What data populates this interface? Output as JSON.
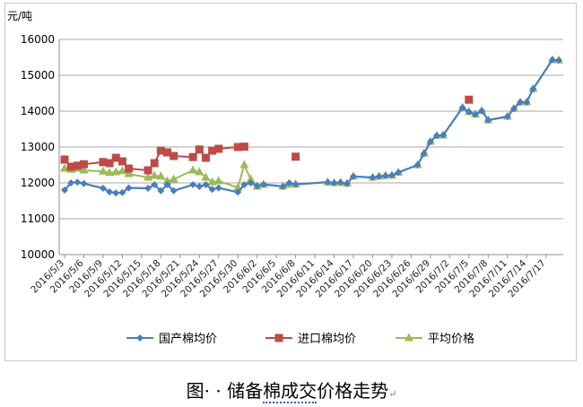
{
  "caption": {
    "prefix": "图· · ",
    "text_part1": "储备",
    "text_underlined": "棉成交",
    "text_part2": "价格走势",
    "return_mark": "↵"
  },
  "chart_data": {
    "type": "line",
    "ylabel": "元/吨",
    "ylim": [
      10000,
      16000
    ],
    "yticks": [
      10000,
      11000,
      12000,
      13000,
      14000,
      15000,
      16000
    ],
    "grid": true,
    "legend_position": "bottom",
    "x_tick_labels": [
      "2016/5/3",
      "2016/5/6",
      "2016/5/9",
      "2016/5/12",
      "2016/5/15",
      "2016/5/18",
      "2016/5/21",
      "2016/5/24",
      "2016/5/27",
      "2016/5/30",
      "2016/6/2",
      "2016/6/5",
      "2016/6/8",
      "2016/6/11",
      "2016/6/14",
      "2016/6/17",
      "2016/6/20",
      "2016/6/23",
      "2016/6/26",
      "2016/6/29",
      "2016/7/2",
      "2016/7/5",
      "2016/7/8",
      "2016/7/11",
      "2016/7/14",
      "2016/7/17"
    ],
    "x_dates": [
      "2016/5/3",
      "2016/5/4",
      "2016/5/5",
      "2016/5/6",
      "2016/5/9",
      "2016/5/10",
      "2016/5/11",
      "2016/5/12",
      "2016/5/13",
      "2016/5/16",
      "2016/5/17",
      "2016/5/18",
      "2016/5/19",
      "2016/5/20",
      "2016/5/23",
      "2016/5/24",
      "2016/5/25",
      "2016/5/26",
      "2016/5/27",
      "2016/5/30",
      "2016/5/31",
      "2016/6/1",
      "2016/6/2",
      "2016/6/3",
      "2016/6/6",
      "2016/6/7",
      "2016/6/8",
      "2016/6/13",
      "2016/6/14",
      "2016/6/15",
      "2016/6/16",
      "2016/6/17",
      "2016/6/20",
      "2016/6/21",
      "2016/6/22",
      "2016/6/23",
      "2016/6/24",
      "2016/6/27",
      "2016/6/28",
      "2016/6/29",
      "2016/6/30",
      "2016/7/1",
      "2016/7/4",
      "2016/7/5",
      "2016/7/6",
      "2016/7/7",
      "2016/7/8",
      "2016/7/11",
      "2016/7/12",
      "2016/7/13",
      "2016/7/14",
      "2016/7/15",
      "2016/7/18",
      "2016/7/19"
    ],
    "series": [
      {
        "name": "国产棉均价",
        "color": "#4a7ebb",
        "marker": "diamond",
        "values": [
          11800,
          12000,
          12020,
          11980,
          11850,
          11750,
          11720,
          11730,
          11860,
          11850,
          11950,
          11780,
          11950,
          11780,
          11950,
          11900,
          11950,
          11820,
          11860,
          11740,
          11950,
          12000,
          11920,
          11960,
          11900,
          12000,
          11960,
          12020,
          12000,
          12010,
          11980,
          12180,
          12150,
          12180,
          12200,
          12210,
          12290,
          12500,
          12820,
          13150,
          13320,
          13330,
          14100,
          13980,
          13910,
          14010,
          13750,
          13850,
          14070,
          14250,
          14250,
          14620,
          15430,
          15420
        ]
      },
      {
        "name": "进口棉均价",
        "color": "#be4b48",
        "marker": "square",
        "values": [
          12650,
          12450,
          12480,
          12520,
          12580,
          12550,
          12700,
          12600,
          12400,
          12350,
          12550,
          12900,
          12850,
          12750,
          12720,
          12930,
          12700,
          12900,
          12950,
          13000,
          13010,
          null,
          null,
          null,
          null,
          null,
          12730,
          null,
          null,
          null,
          null,
          null,
          null,
          null,
          null,
          null,
          null,
          null,
          null,
          null,
          null,
          null,
          null,
          14320,
          null,
          null,
          null,
          null,
          null,
          null,
          null,
          null,
          null,
          null
        ]
      },
      {
        "name": "平均价格",
        "color": "#9bbb59",
        "marker": "triangle",
        "values": [
          12400,
          12370,
          12400,
          12350,
          12320,
          12280,
          12300,
          12330,
          12250,
          12150,
          12200,
          12180,
          12050,
          12100,
          12350,
          12300,
          12150,
          12020,
          12050,
          11870,
          12500,
          12100,
          11900,
          11950,
          11900,
          11950,
          11960,
          12020,
          12000,
          12010,
          11980,
          12180,
          12150,
          12180,
          12200,
          12210,
          12290,
          12500,
          12820,
          13150,
          13320,
          13330,
          14100,
          13980,
          13910,
          14010,
          13750,
          13850,
          14070,
          14250,
          14250,
          14620,
          15430,
          15420
        ]
      }
    ]
  }
}
